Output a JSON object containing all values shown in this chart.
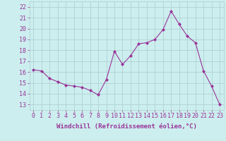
{
  "x": [
    0,
    1,
    2,
    3,
    4,
    5,
    6,
    7,
    8,
    9,
    10,
    11,
    12,
    13,
    14,
    15,
    16,
    17,
    18,
    19,
    20,
    21,
    22,
    23
  ],
  "y": [
    16.2,
    16.1,
    15.4,
    15.1,
    14.8,
    14.7,
    14.6,
    14.3,
    13.9,
    15.3,
    17.9,
    16.7,
    17.5,
    18.6,
    18.7,
    19.0,
    19.9,
    21.6,
    20.4,
    19.3,
    18.7,
    16.1,
    14.7,
    13.0
  ],
  "line_color": "#993399",
  "marker": "D",
  "marker_size": 2,
  "bg_color": "#cceeee",
  "grid_color": "#aacccc",
  "xlabel": "Windchill (Refroidissement éolien,°C)",
  "ylabel_ticks": [
    13,
    14,
    15,
    16,
    17,
    18,
    19,
    20,
    21,
    22
  ],
  "ylim": [
    12.5,
    22.5
  ],
  "xlim": [
    -0.5,
    23.5
  ],
  "tick_color": "#993399",
  "label_color": "#993399",
  "font_size": 6,
  "xlabel_size": 6.5
}
